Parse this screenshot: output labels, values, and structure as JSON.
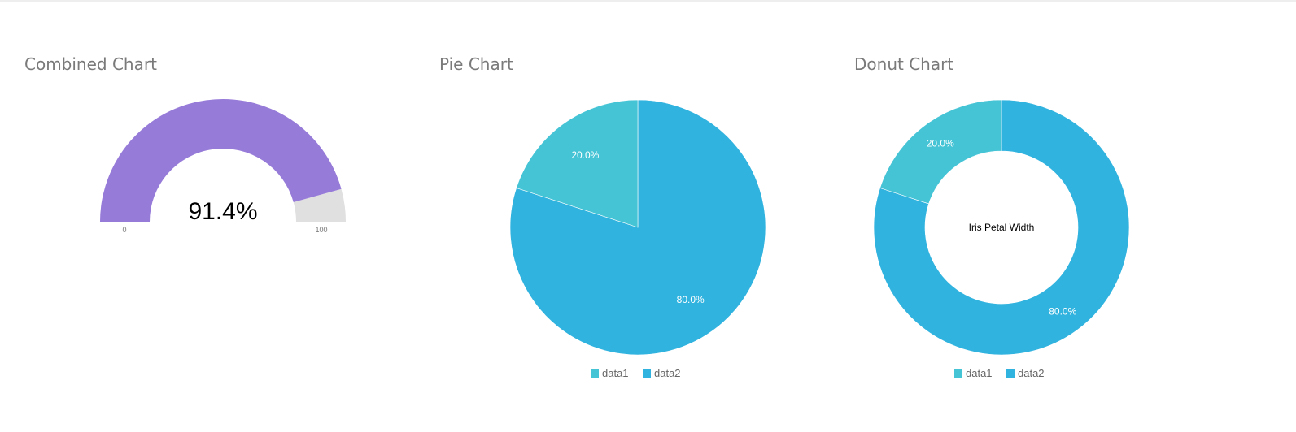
{
  "panels": {
    "combined_title": "Combined Chart",
    "pie_title": "Pie Chart",
    "donut_title": "Donut Chart"
  },
  "chart_data": [
    {
      "type": "gauge",
      "value": 91.4,
      "min": 0,
      "max": 100,
      "value_label": "91.4%",
      "min_label": "0",
      "max_label": "100",
      "color": "#977bd9",
      "track_color": "#e0e0e0"
    },
    {
      "type": "pie",
      "series": [
        {
          "name": "data1",
          "value": 20.0,
          "label": "20.0%",
          "color": "#45c4d6"
        },
        {
          "name": "data2",
          "value": 80.0,
          "label": "80.0%",
          "color": "#31b3df"
        }
      ],
      "legend": "bottom"
    },
    {
      "type": "donut",
      "center_title": "Iris Petal Width",
      "series": [
        {
          "name": "data1",
          "value": 20.0,
          "label": "20.0%",
          "color": "#45c4d6"
        },
        {
          "name": "data2",
          "value": 80.0,
          "label": "80.0%",
          "color": "#31b3df"
        }
      ],
      "legend": "bottom"
    }
  ]
}
